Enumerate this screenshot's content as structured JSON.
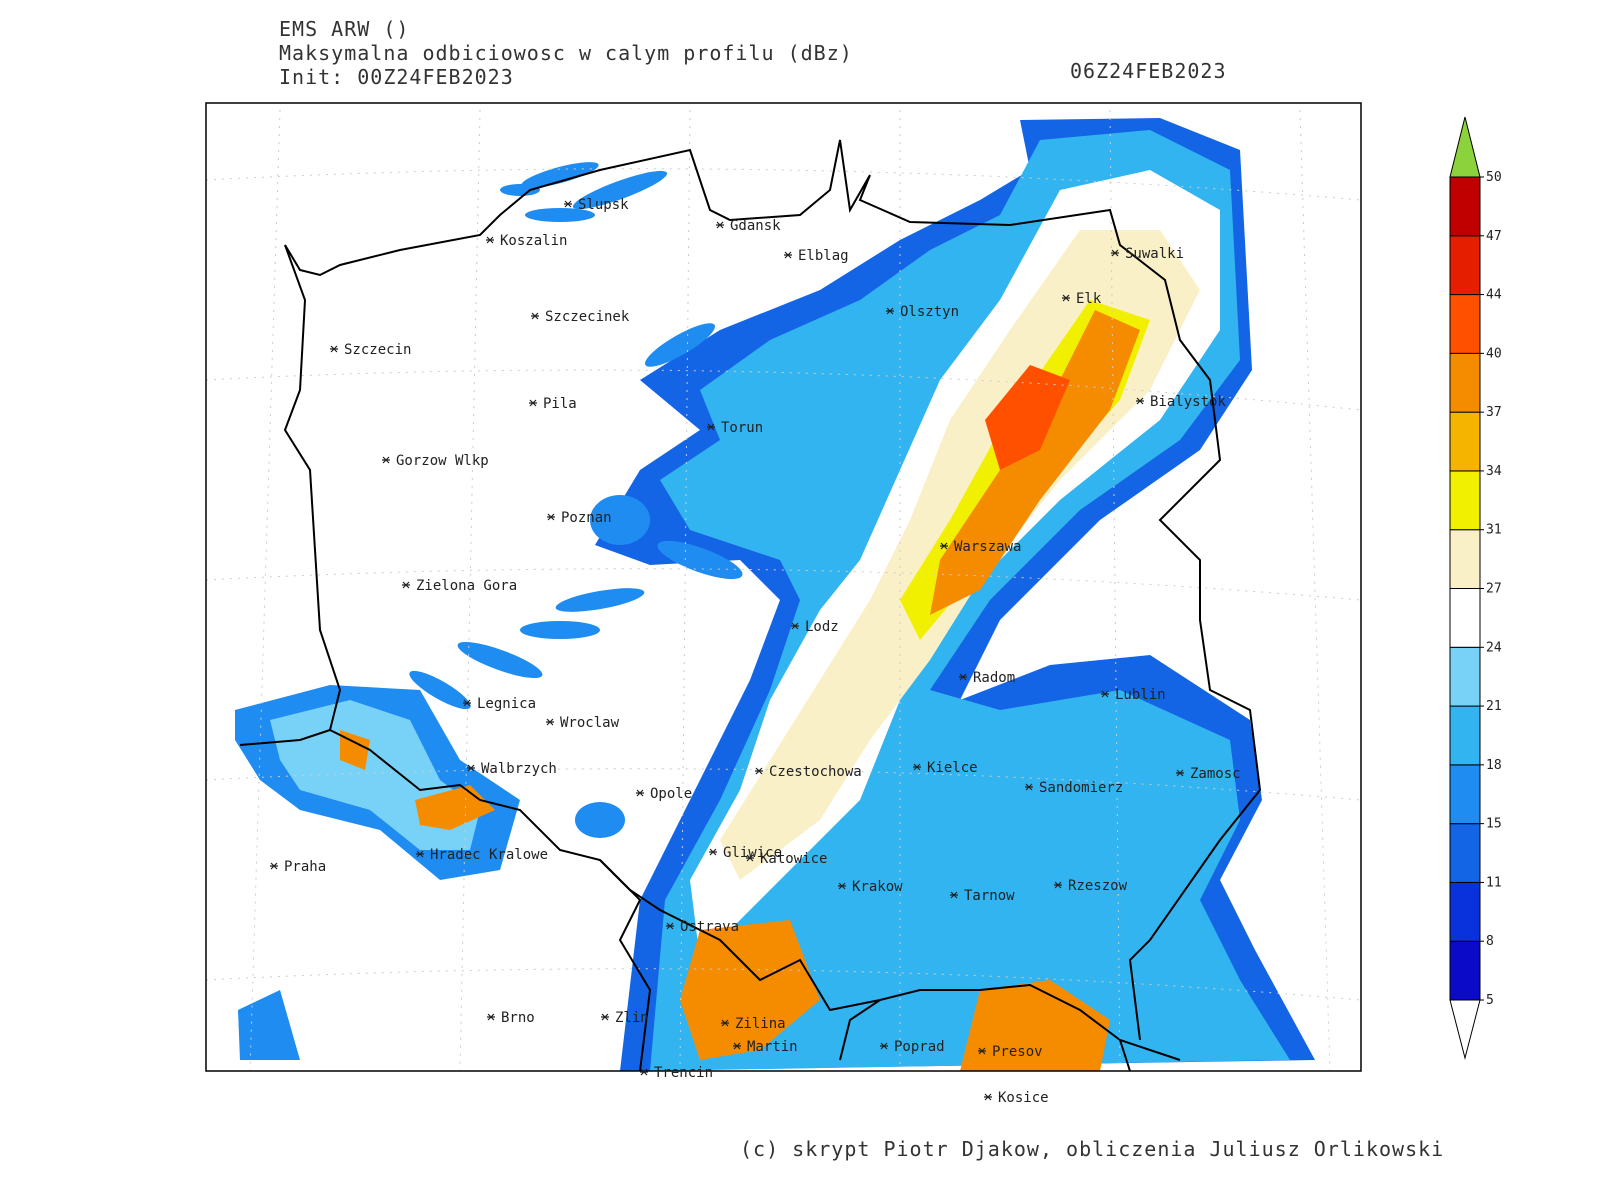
{
  "header": {
    "model": "EMS ARW ()",
    "field": "Maksymalna odbiciowosc w calym profilu (dBz)",
    "init": "Init: 00Z24FEB2023",
    "valid": "06Z24FEB2023"
  },
  "cities": [
    "Slupsk",
    "Koszalin",
    "Gdansk",
    "Elblag",
    "Suwalki",
    "Olsztyn",
    "Elk",
    "Szczecinek",
    "Szczecin",
    "Bialystok",
    "Pila",
    "Torun",
    "Gorzow Wlkp",
    "Poznan",
    "Warszawa",
    "Zielona Gora",
    "Lodz",
    "Radom",
    "Lublin",
    "Legnica",
    "Wroclaw",
    "Walbrzych",
    "Czestochowa",
    "Kielce",
    "Zamosc",
    "Sandomierz",
    "Opole",
    "Gliwice",
    "Katowice",
    "Praha",
    "Hradec Kralowe",
    "Krakow",
    "Tarnow",
    "Rzeszow",
    "Ostrava",
    "Brno",
    "Zlin",
    "Zilina",
    "Martin",
    "Poprad",
    "Presov",
    "Trencin",
    "Kosice"
  ],
  "colorbar": {
    "levels": [
      5,
      8,
      11,
      15,
      18,
      21,
      24,
      27,
      31,
      34,
      37,
      40,
      44,
      47,
      50
    ],
    "colors": [
      "#0a0ac8",
      "#0a32dc",
      "#1464e6",
      "#1e8cf0",
      "#32b4f0",
      "#78d2f8",
      "#ffffff",
      "#faf0c8",
      "#f0f000",
      "#f5b400",
      "#f58c00",
      "#ff5000",
      "#e61e00",
      "#c00000"
    ],
    "under_color": "#ffffff",
    "over_color": "#8cd23c"
  },
  "footer": "(c) skrypt Piotr Djakow, obliczenia Juliusz Orlikowski"
}
